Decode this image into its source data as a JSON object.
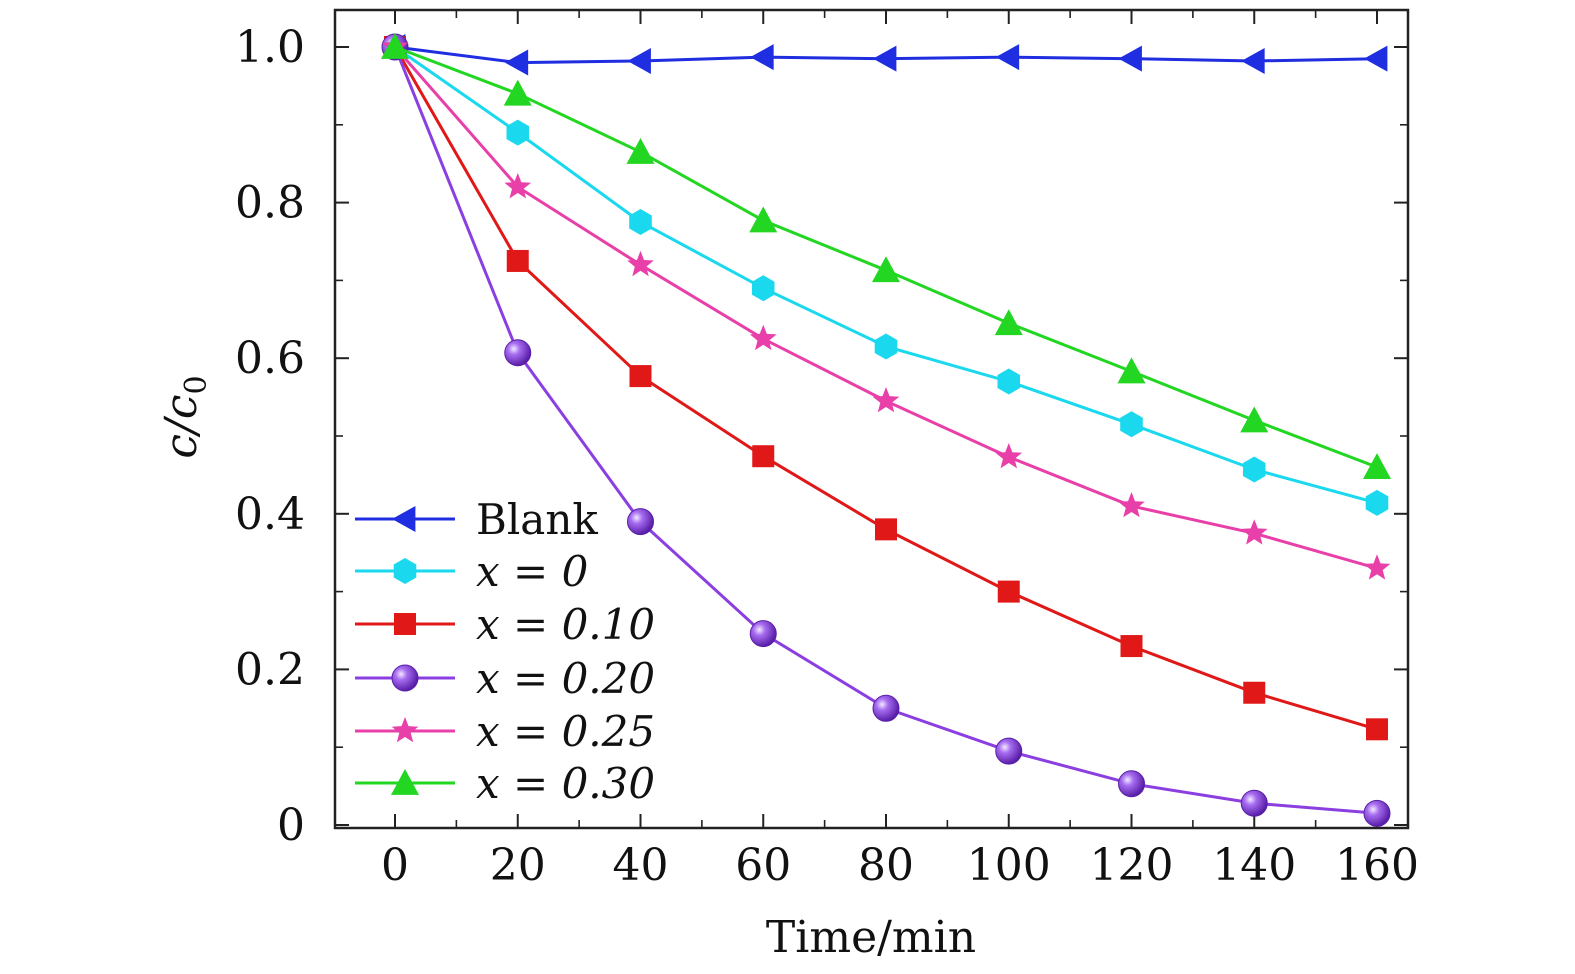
{
  "chart_data": {
    "type": "line",
    "title": "",
    "xlabel": "Time/min",
    "ylabel": "c/c0",
    "ylabel_main": "c/c",
    "ylabel_sub": "0",
    "xlim": [
      -10,
      165
    ],
    "ylim": [
      0,
      1.05
    ],
    "xticks": [
      0,
      20,
      40,
      60,
      80,
      100,
      120,
      140,
      160
    ],
    "xtick_labels": [
      "0",
      "20",
      "40",
      "60",
      "80",
      "100",
      "120",
      "140",
      "160"
    ],
    "yticks": [
      0,
      0.2,
      0.4,
      0.6,
      0.8,
      1.0
    ],
    "ytick_labels": [
      "0",
      "0.2",
      "0.4",
      "0.6",
      "0.8",
      "1.0"
    ],
    "x": [
      0,
      20,
      40,
      60,
      80,
      100,
      120,
      140,
      160
    ],
    "legend_position": "bottom-left",
    "series": [
      {
        "name": "Blank",
        "color": "#1f2ee0",
        "marker": "triangle-left",
        "values": [
          1.0,
          0.98,
          0.982,
          0.987,
          0.985,
          0.987,
          0.985,
          0.982,
          0.985
        ]
      },
      {
        "name": "x = 0",
        "color": "#1ad8ee",
        "marker": "hexagon",
        "values": [
          1.0,
          0.89,
          0.775,
          0.69,
          0.615,
          0.57,
          0.515,
          0.457,
          0.414
        ]
      },
      {
        "name": "x = 0.10",
        "color": "#e01818",
        "marker": "square",
        "values": [
          1.0,
          0.725,
          0.577,
          0.474,
          0.38,
          0.3,
          0.23,
          0.17,
          0.123
        ]
      },
      {
        "name": "x = 0.20",
        "color": "#8b3fe0",
        "marker": "sphere",
        "values": [
          1.0,
          0.607,
          0.39,
          0.246,
          0.15,
          0.095,
          0.053,
          0.028,
          0.015
        ]
      },
      {
        "name": "x = 0.25",
        "color": "#e83fa8",
        "marker": "star",
        "values": [
          1.0,
          0.82,
          0.72,
          0.625,
          0.545,
          0.473,
          0.41,
          0.375,
          0.33
        ]
      },
      {
        "name": "x = 0.30",
        "color": "#22d622",
        "marker": "triangle-up",
        "values": [
          1.0,
          0.94,
          0.865,
          0.777,
          0.713,
          0.645,
          0.583,
          0.52,
          0.46
        ]
      }
    ]
  }
}
